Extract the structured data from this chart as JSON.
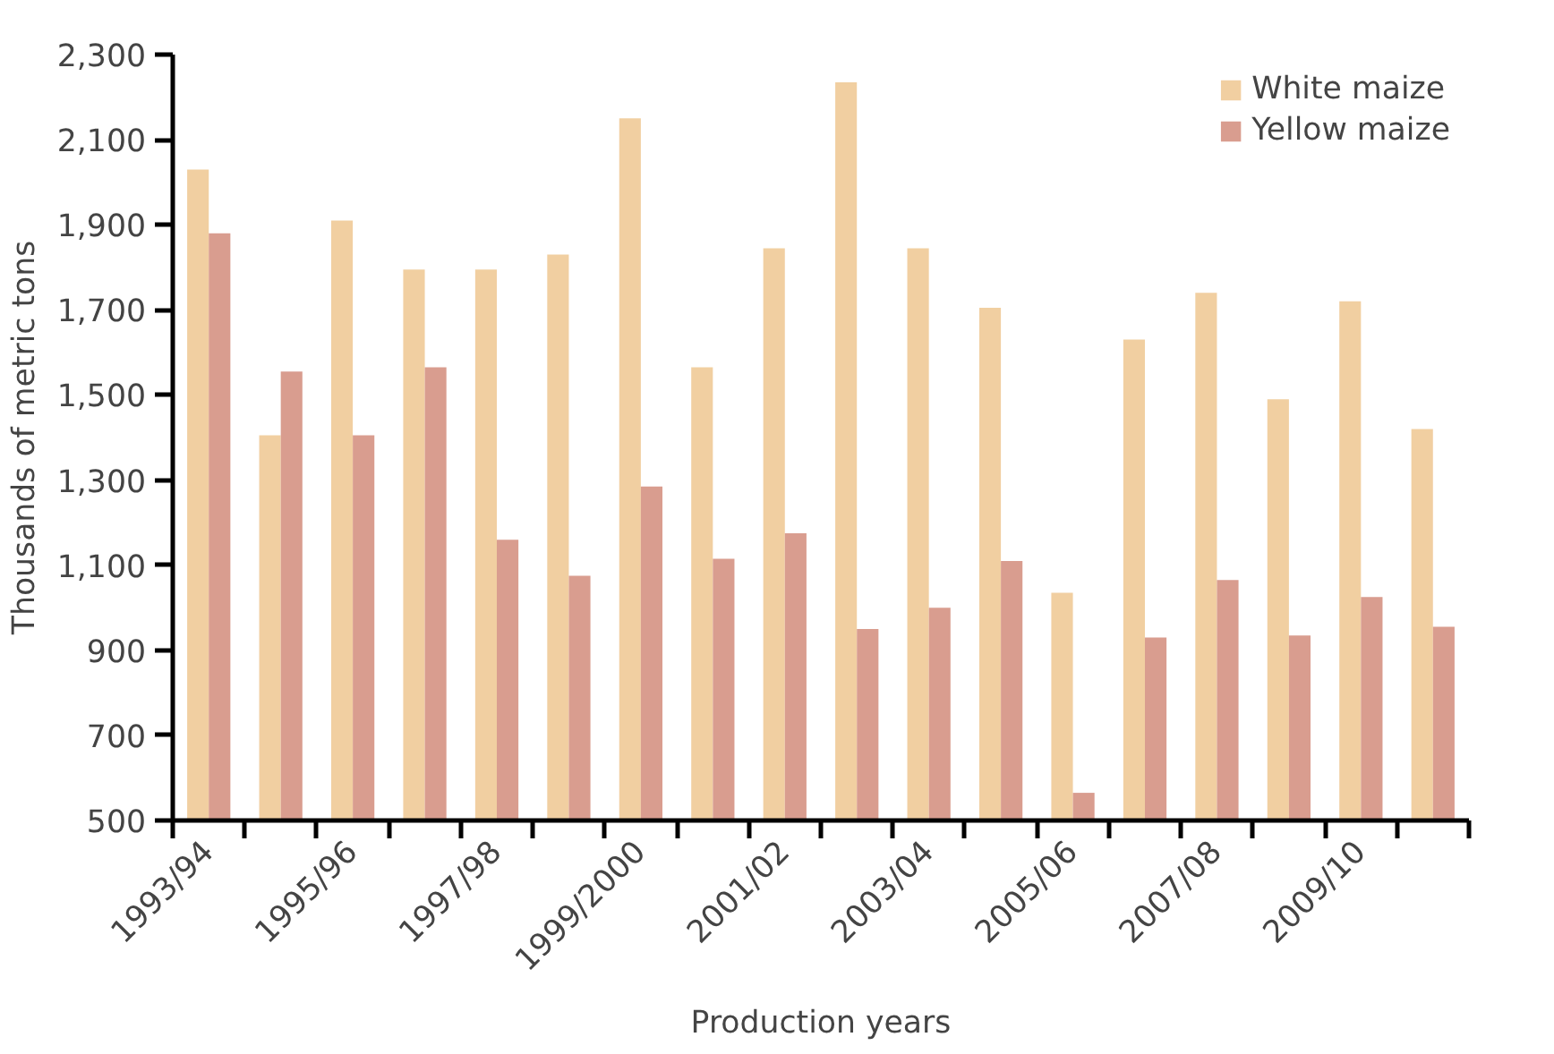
{
  "chart_data": {
    "type": "bar",
    "xlabel": "Production years",
    "ylabel": "Thousands of metric tons",
    "categories": [
      "1993/94",
      null,
      "1995/96",
      null,
      "1997/98",
      null,
      "1999/2000",
      null,
      "2001/02",
      null,
      "2003/04",
      null,
      "2005/06",
      null,
      "2007/08",
      null,
      "2009/10",
      null
    ],
    "series": [
      {
        "name": "White maize",
        "color": "#f1cfa1",
        "values": [
          2030,
          1405,
          1910,
          1795,
          1795,
          1830,
          2150,
          1565,
          1845,
          2235,
          1845,
          1705,
          1035,
          1630,
          1740,
          1490,
          1720,
          1420
        ]
      },
      {
        "name": "Yellow maize",
        "color": "#d99d8f",
        "values": [
          1880,
          1555,
          1405,
          1565,
          1160,
          1075,
          1285,
          1115,
          1175,
          950,
          1000,
          1110,
          565,
          930,
          1065,
          935,
          1025,
          955
        ]
      }
    ],
    "ylim": [
      500,
      2300
    ],
    "yticks": [
      {
        "value": 500,
        "label": "500"
      },
      {
        "value": 700,
        "label": "700"
      },
      {
        "value": 900,
        "label": "900"
      },
      {
        "value": 1100,
        "label": "1,100"
      },
      {
        "value": 1300,
        "label": "1,300"
      },
      {
        "value": 1500,
        "label": "1,500"
      },
      {
        "value": 1700,
        "label": "1,700"
      },
      {
        "value": 1900,
        "label": "1,900"
      },
      {
        "value": 2100,
        "label": "2,100"
      },
      {
        "value": 2300,
        "label": "2,300"
      }
    ],
    "grid": false,
    "legend": "top right"
  }
}
